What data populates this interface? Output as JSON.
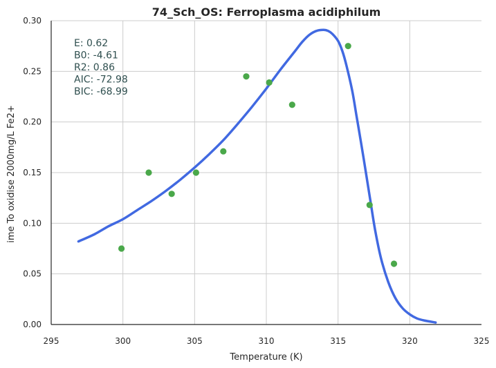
{
  "chart_data": {
    "type": "scatter",
    "title": "74_Sch_OS: Ferroplasma acidiphilum",
    "xlabel": "Temperature (K)",
    "ylabel": "ime To oxidise 2000mg/L Fe2+",
    "xlim": [
      295,
      325
    ],
    "ylim": [
      0,
      0.3
    ],
    "xticks": [
      "295",
      "300",
      "305",
      "310",
      "315",
      "320",
      "325"
    ],
    "yticks": [
      "0.00",
      "0.05",
      "0.10",
      "0.15",
      "0.20",
      "0.25",
      "0.30"
    ],
    "grid": true,
    "stats": [
      "E:  0.62",
      "B0:  -4.61",
      "R2:  0.86",
      "AIC: -72.98",
      "BIC: -68.99"
    ],
    "series": [
      {
        "type": "scatter",
        "color": "#4aa84a",
        "x": [
          299.9,
          301.8,
          303.4,
          305.1,
          307.0,
          308.6,
          310.2,
          311.8,
          315.7,
          317.2,
          318.9
        ],
        "y": [
          0.075,
          0.15,
          0.129,
          0.15,
          0.171,
          0.245,
          0.239,
          0.217,
          0.275,
          0.118,
          0.06
        ]
      },
      {
        "type": "line",
        "color": "#4169e1",
        "x": [
          296.9,
          298,
          299,
          300,
          301,
          302,
          303,
          304,
          305,
          306,
          307,
          308,
          309,
          310,
          311,
          312,
          312.5,
          313,
          313.5,
          314,
          314.3,
          314.6,
          315,
          315.3,
          315.6,
          316,
          316.3,
          316.6,
          317,
          317.3,
          317.6,
          318,
          318.5,
          319,
          319.5,
          320,
          320.5,
          321,
          321.8
        ],
        "y": [
          0.082,
          0.089,
          0.097,
          0.104,
          0.113,
          0.122,
          0.132,
          0.143,
          0.155,
          0.168,
          0.182,
          0.198,
          0.215,
          0.233,
          0.252,
          0.27,
          0.279,
          0.286,
          0.29,
          0.291,
          0.29,
          0.287,
          0.28,
          0.27,
          0.255,
          0.23,
          0.205,
          0.18,
          0.145,
          0.118,
          0.092,
          0.065,
          0.042,
          0.026,
          0.016,
          0.01,
          0.006,
          0.004,
          0.002
        ]
      }
    ]
  }
}
